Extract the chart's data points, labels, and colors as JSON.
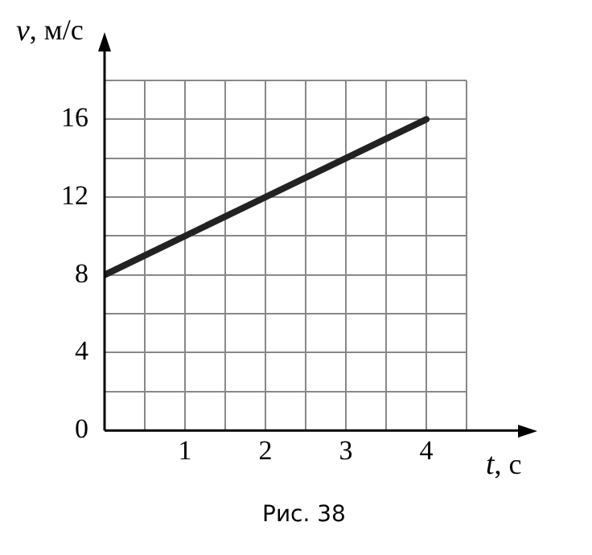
{
  "chart_data": {
    "type": "line",
    "xlabel": "t, с",
    "ylabel": "v, м/с",
    "annotations": [
      "Рис. 38"
    ],
    "x": [
      0,
      4
    ],
    "series": [
      {
        "color": "#222222",
        "values": [
          8,
          16
        ]
      }
    ],
    "xlim": [
      0,
      4.5
    ],
    "ylim": [
      0,
      18
    ],
    "xticks": [
      {
        "value": 0,
        "label": null
      },
      {
        "value": 0.5,
        "label": null
      },
      1,
      {
        "value": 1.5,
        "label": null
      },
      2,
      {
        "value": 2.5,
        "label": null
      },
      3,
      {
        "value": 3.5,
        "label": null
      },
      4,
      {
        "value": 4.5,
        "label": null
      }
    ],
    "yticks": [
      0,
      {
        "value": 2,
        "label": null
      },
      4,
      {
        "value": 6,
        "label": null
      },
      8,
      {
        "value": 10,
        "label": null
      },
      12,
      {
        "value": 14,
        "label": null
      },
      16,
      {
        "value": 18,
        "label": null
      }
    ],
    "grid": true,
    "legend": false,
    "marker": "none",
    "line_style": "solid"
  }
}
